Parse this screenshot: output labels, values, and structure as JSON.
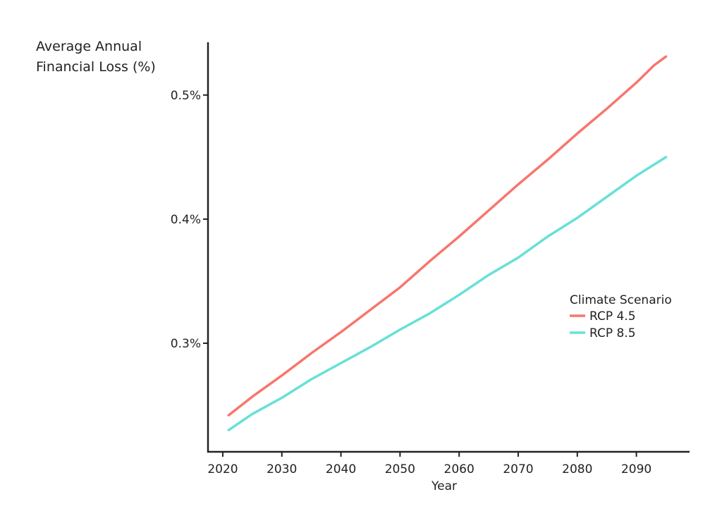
{
  "chart_data": {
    "type": "line",
    "title": "",
    "ylabel_lines": [
      "Average Annual",
      "Financial Loss (%)"
    ],
    "xlabel": "Year",
    "xlim": [
      2017.5,
      2099
    ],
    "ylim": [
      0.2125,
      0.5425
    ],
    "xticks": [
      2020,
      2030,
      2040,
      2050,
      2060,
      2070,
      2080,
      2090
    ],
    "yticks": [
      {
        "value": 0.3,
        "label": "0.3%"
      },
      {
        "value": 0.4,
        "label": "0.4%"
      },
      {
        "value": 0.5,
        "label": "0.5%"
      }
    ],
    "grid": false,
    "legend": {
      "title": "Climate Scenario",
      "placement": "right"
    },
    "series": [
      {
        "name": "RCP 4.5",
        "color": "#f8766d",
        "x": [
          2021,
          2025,
          2030,
          2035,
          2040,
          2045,
          2050,
          2055,
          2060,
          2065,
          2070,
          2075,
          2080,
          2085,
          2090,
          2093,
          2095
        ],
        "y": [
          0.242,
          0.257,
          0.274,
          0.292,
          0.309,
          0.327,
          0.345,
          0.366,
          0.386,
          0.407,
          0.428,
          0.448,
          0.469,
          0.489,
          0.51,
          0.524,
          0.531
        ]
      },
      {
        "name": "RCP 8.5",
        "color": "#67e0d8",
        "x": [
          2021,
          2025,
          2030,
          2035,
          2040,
          2045,
          2050,
          2055,
          2060,
          2065,
          2070,
          2075,
          2080,
          2085,
          2090,
          2095
        ],
        "y": [
          0.23,
          0.243,
          0.256,
          0.271,
          0.284,
          0.297,
          0.311,
          0.324,
          0.339,
          0.355,
          0.369,
          0.386,
          0.401,
          0.418,
          0.435,
          0.45
        ]
      }
    ]
  }
}
